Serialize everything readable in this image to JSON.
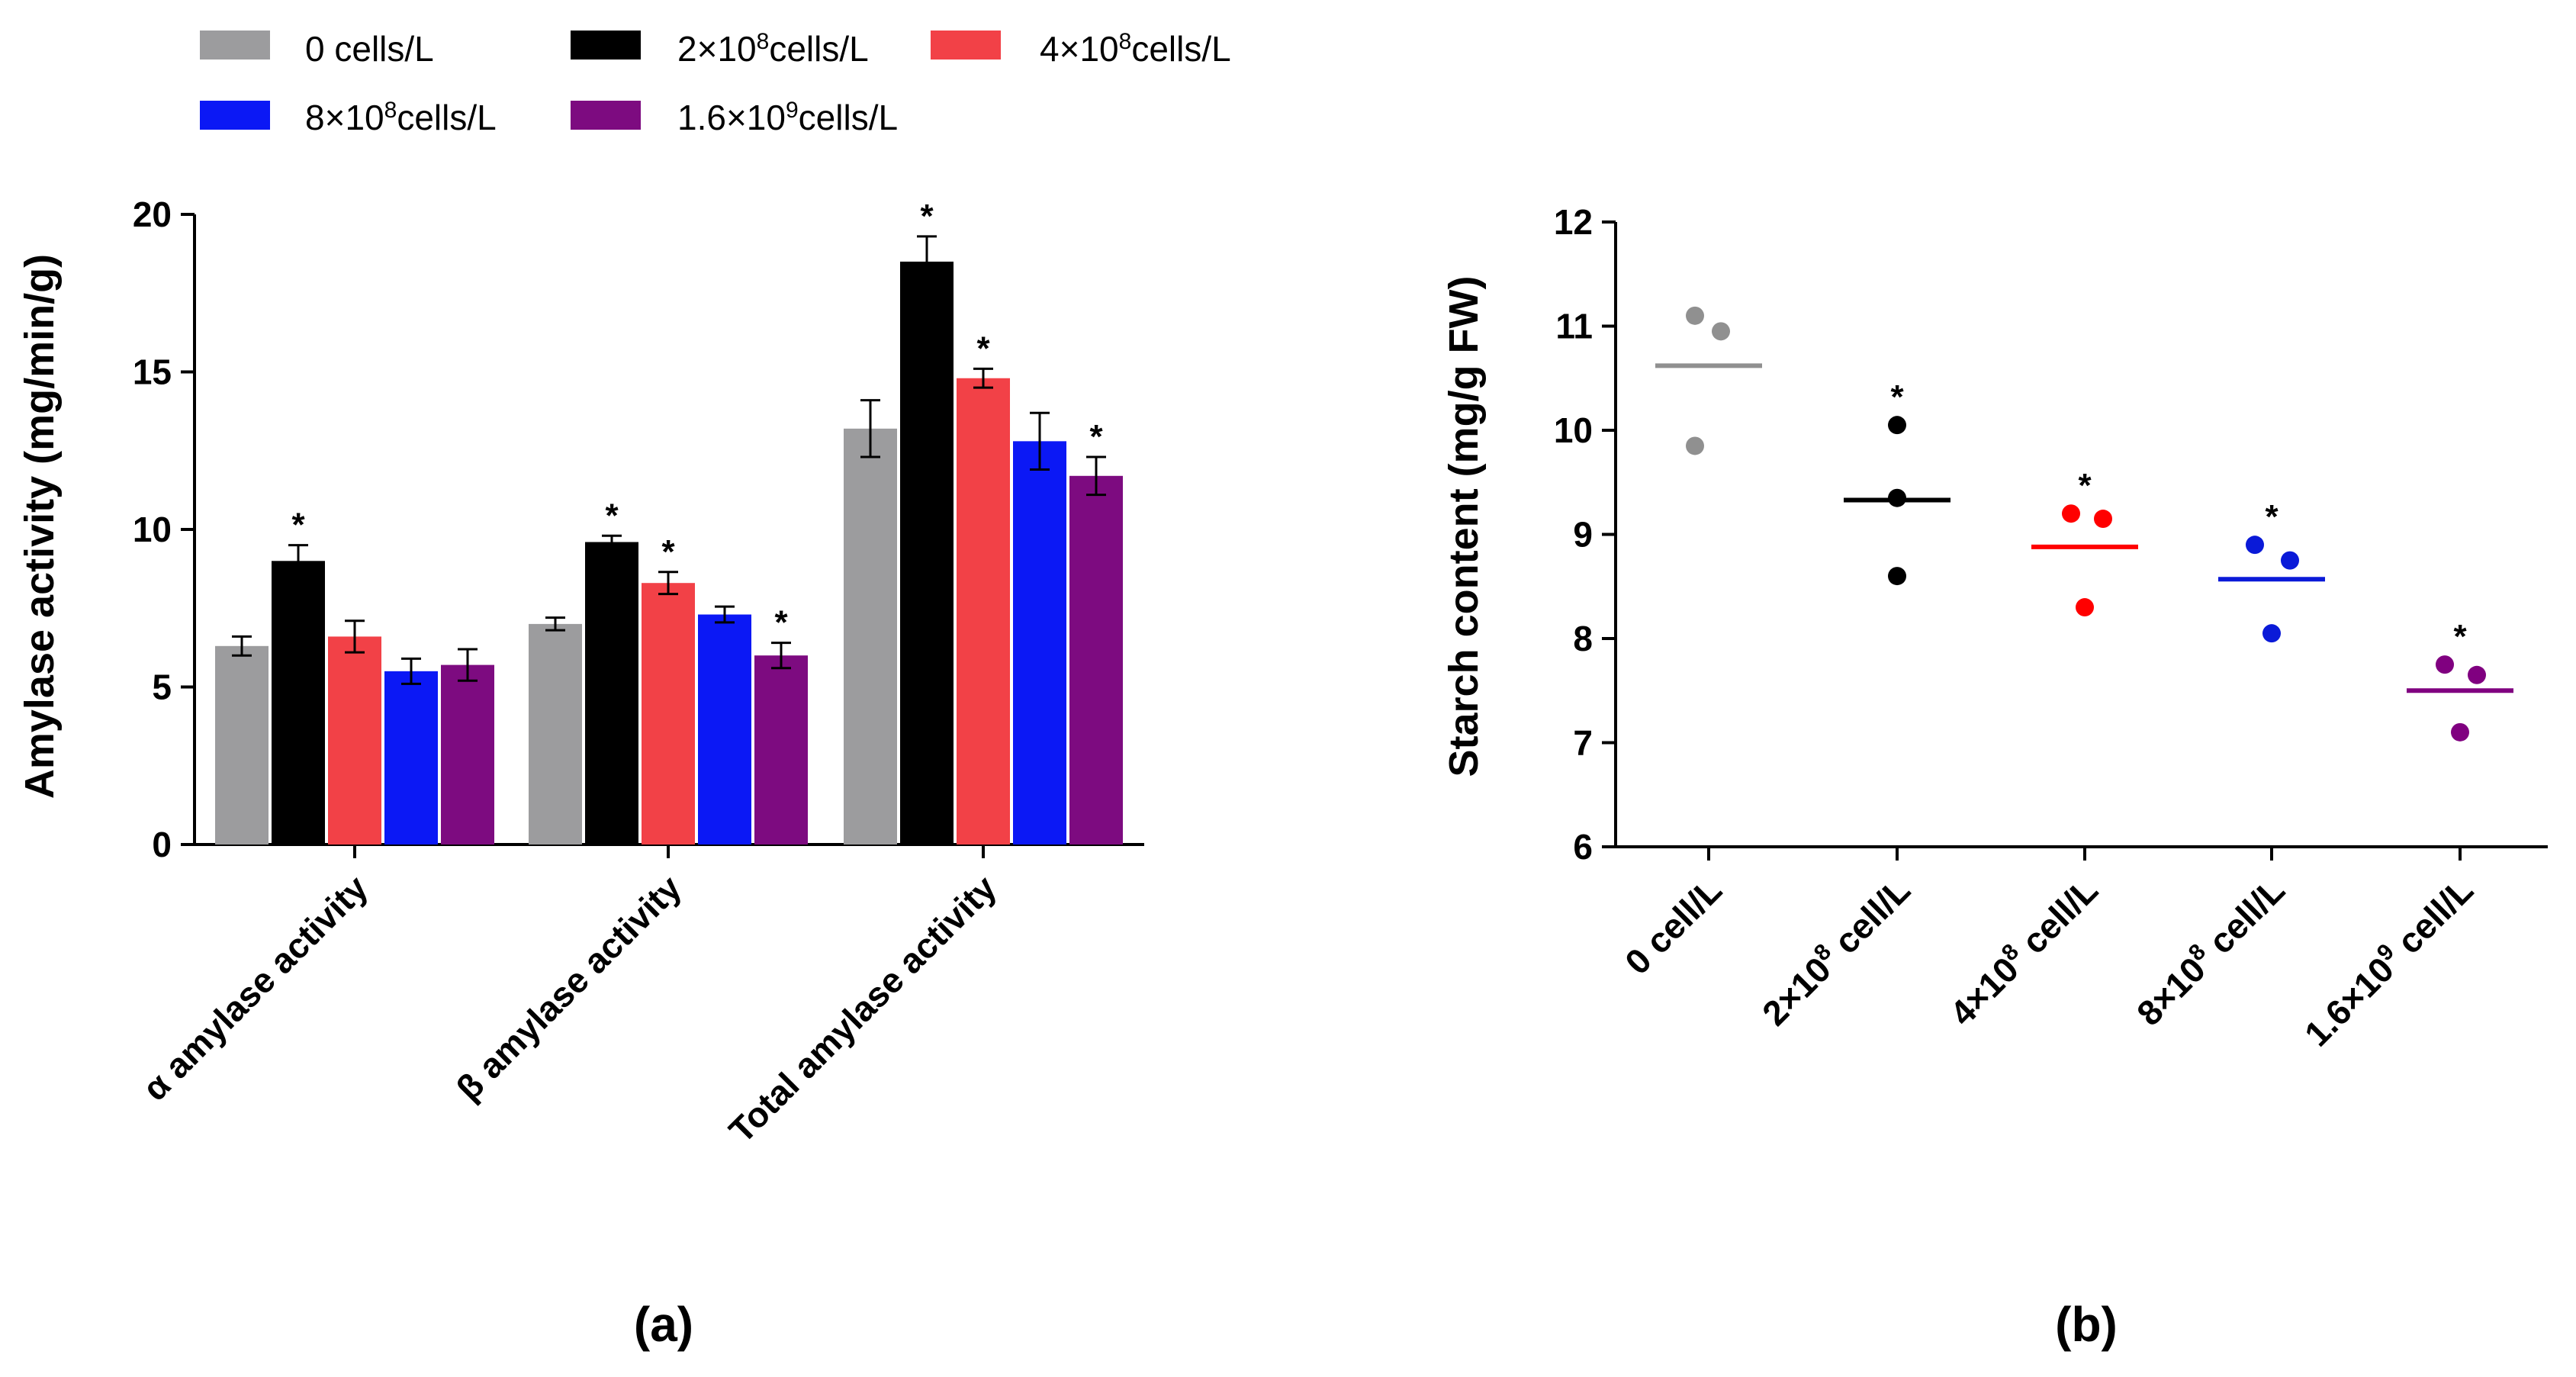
{
  "chart_data": [
    {
      "type": "bar",
      "panel_label": "(a)",
      "ylabel": "Amylase activity (mg/min/g)",
      "ylim": [
        0,
        20
      ],
      "yticks": [
        "0",
        "5",
        "10",
        "15",
        "20"
      ],
      "categories": [
        "α amylase activity",
        "β amylase activity",
        "Total amylase activity"
      ],
      "legend": [
        {
          "base": "0 cells/L",
          "sup": "",
          "rest": ""
        },
        {
          "base": "2×10",
          "sup": "8",
          "rest": "cells/L"
        },
        {
          "base": "4×10",
          "sup": "8",
          "rest": "cells/L"
        },
        {
          "base": "8×10",
          "sup": "8",
          "rest": "cells/L"
        },
        {
          "base": "1.6×10",
          "sup": "9",
          "rest": "cells/L"
        }
      ],
      "series": [
        {
          "name": "0 cells/L",
          "color": "#9c9c9e",
          "values": [
            6.3,
            7.0,
            13.2
          ],
          "errors": [
            0.3,
            0.2,
            0.9
          ],
          "significant": [
            false,
            false,
            false
          ]
        },
        {
          "name": "2×10^8 cells/L",
          "color": "#000000",
          "values": [
            9.0,
            9.6,
            18.5
          ],
          "errors": [
            0.5,
            0.2,
            0.8
          ],
          "significant": [
            true,
            true,
            true
          ]
        },
        {
          "name": "4×10^8 cells/L",
          "color": "#f24147",
          "values": [
            6.6,
            8.3,
            14.8
          ],
          "errors": [
            0.5,
            0.35,
            0.3
          ],
          "significant": [
            false,
            true,
            true
          ]
        },
        {
          "name": "8×10^8 cells/L",
          "color": "#0b18f5",
          "values": [
            5.5,
            7.3,
            12.8
          ],
          "errors": [
            0.4,
            0.25,
            0.9
          ],
          "significant": [
            false,
            false,
            false
          ]
        },
        {
          "name": "1.6×10^9 cells/L",
          "color": "#7d0b80",
          "values": [
            5.7,
            6.0,
            11.7
          ],
          "errors": [
            0.5,
            0.4,
            0.6
          ],
          "significant": [
            false,
            true,
            true
          ]
        }
      ],
      "significance_marker": "*"
    },
    {
      "type": "scatter",
      "panel_label": "(b)",
      "ylabel": "Starch content (mg/g FW)",
      "ylim": [
        6,
        12
      ],
      "yticks": [
        "6",
        "7",
        "8",
        "9",
        "10",
        "11",
        "12"
      ],
      "categories": [
        {
          "base": "0 cell/L",
          "sup": "",
          "rest": ""
        },
        {
          "base": "2×10",
          "sup": "8",
          "rest": " cell/L"
        },
        {
          "base": "4×10",
          "sup": "8",
          "rest": " cell/L"
        },
        {
          "base": "8×10",
          "sup": "8",
          "rest": " cell/L"
        },
        {
          "base": "1.6×10",
          "sup": "9",
          "rest": " cell/L"
        }
      ],
      "groups": [
        {
          "color": "#909090",
          "points": [
            11.1,
            10.95,
            9.85
          ],
          "mean": 10.62,
          "significant": false
        },
        {
          "color": "#000000",
          "points": [
            10.05,
            9.35,
            8.6
          ],
          "mean": 9.33,
          "significant": true
        },
        {
          "color": "#ff0000",
          "points": [
            9.2,
            9.15,
            8.3
          ],
          "mean": 8.88,
          "significant": true
        },
        {
          "color": "#0a1ad8",
          "points": [
            8.9,
            8.75,
            8.05
          ],
          "mean": 8.57,
          "significant": true
        },
        {
          "color": "#800080",
          "points": [
            7.75,
            7.65,
            7.1
          ],
          "mean": 7.5,
          "significant": true
        }
      ],
      "significance_marker": "*"
    }
  ]
}
